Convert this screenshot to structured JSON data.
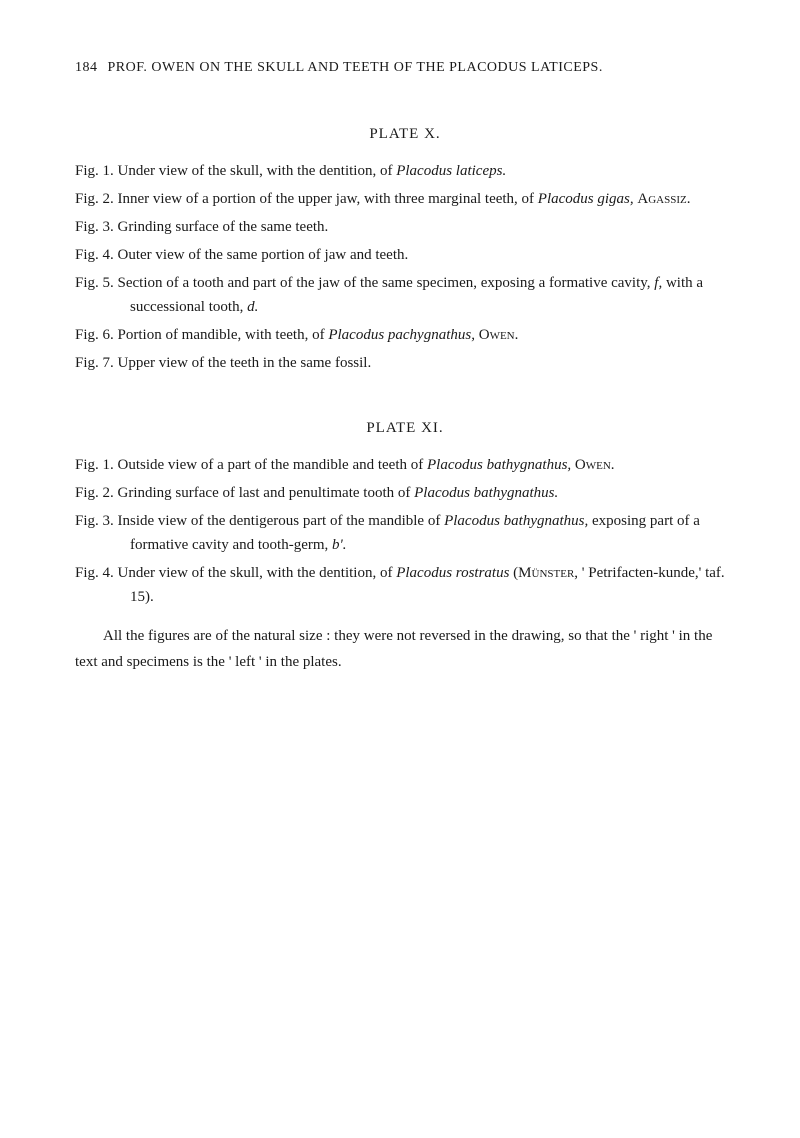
{
  "header": {
    "pageNumber": "184",
    "title": "PROF. OWEN ON THE SKULL AND TEETH OF THE PLACODUS LATICEPS."
  },
  "plateX": {
    "title": "PLATE X.",
    "figs": [
      {
        "label": "Fig. 1.",
        "text1": "Under view of the skull, with the dentition, of ",
        "italic1": "Placodus laticeps.",
        "text2": ""
      },
      {
        "label": "Fig. 2.",
        "text1": "Inner view of a portion of the upper jaw, with three marginal teeth, of ",
        "italic1": "Placodus gigas,",
        "text2": " ",
        "smallcaps1": "Agassiz."
      },
      {
        "label": "Fig. 3.",
        "text1": "Grinding surface of the same teeth."
      },
      {
        "label": "Fig. 4.",
        "text1": "Outer view of the same portion of jaw and teeth."
      },
      {
        "label": "Fig. 5.",
        "text1": "Section of a tooth and part of the jaw of the same specimen, exposing a formative cavity, ",
        "italic1": "f,",
        "text2": " with a successional tooth, ",
        "italic2": "d."
      },
      {
        "label": "Fig. 6.",
        "text1": "Portion of mandible, with teeth, of ",
        "italic1": "Placodus pachygnathus,",
        "text2": " ",
        "smallcaps1": "Owen."
      },
      {
        "label": "Fig. 7.",
        "text1": "Upper view of the teeth in the same fossil."
      }
    ]
  },
  "plateXI": {
    "title": "PLATE XI.",
    "figs": [
      {
        "label": "Fig. 1.",
        "text1": "Outside view of a part of the mandible and teeth of ",
        "italic1": "Placodus bathygnathus,",
        "text2": " ",
        "smallcaps1": "Owen."
      },
      {
        "label": "Fig. 2.",
        "text1": "Grinding surface of last and penultimate tooth of ",
        "italic1": "Placodus bathygnathus."
      },
      {
        "label": "Fig. 3.",
        "text1": "Inside view of the dentigerous part of the mandible of ",
        "italic1": "Placodus bathygnathus,",
        "text2": " exposing part of a formative cavity and tooth-germ, ",
        "italic2": "b'."
      },
      {
        "label": "Fig. 4.",
        "text1": "Under view of the skull, with the dentition, of ",
        "italic1": "Placodus rostratus",
        "text2": " (",
        "smallcaps1": "Münster,",
        "text3": " ' Petrifacten-kunde,' taf. 15)."
      }
    ]
  },
  "closing": {
    "text": "All the figures are of the natural size : they were not reversed in the drawing, so that the ' right ' in the text and specimens is the ' left ' in the plates."
  }
}
